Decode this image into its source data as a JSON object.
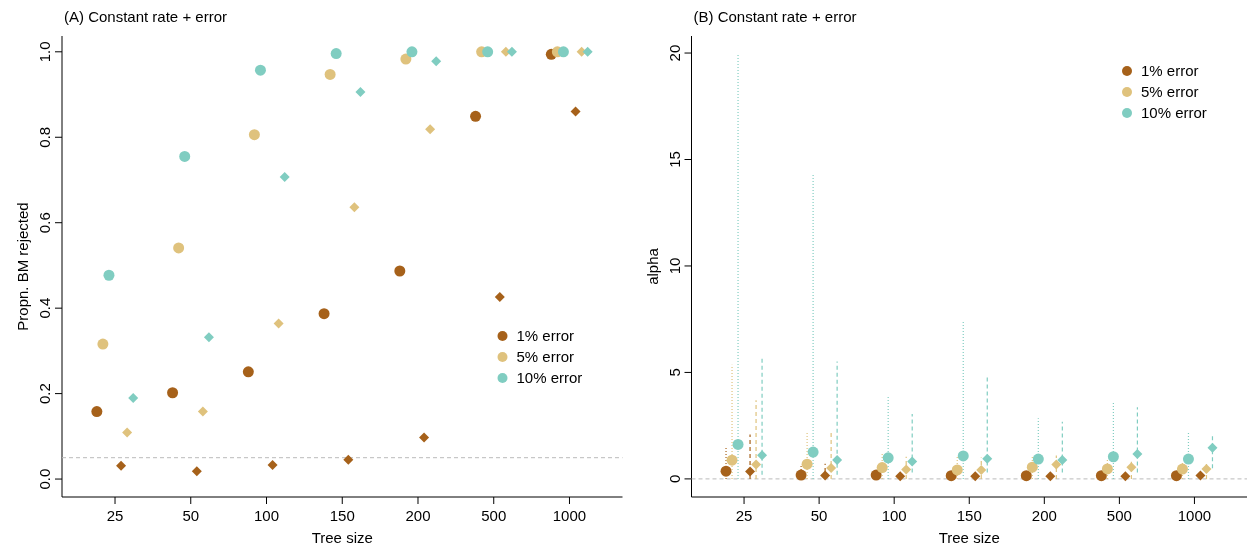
{
  "chart_data": [
    {
      "type": "scatter",
      "title": "(A) Constant rate + error",
      "xlabel": "Tree size",
      "ylabel": "Propn. BM rejected",
      "categories": [
        "25",
        "50",
        "100",
        "150",
        "200",
        "500",
        "1000"
      ],
      "ylim": [
        -0.042,
        1.037
      ],
      "yticks": [
        {
          "value": 0,
          "label": "0.0"
        },
        0.2,
        0.4,
        0.6,
        0.8,
        {
          "value": 1,
          "label": "1.0"
        }
      ],
      "legend": "right",
      "grid": false,
      "ref_lines": [
        {
          "axis": "y",
          "value": 0.05,
          "color": "#bbbbbb",
          "line_style": "dashed"
        }
      ],
      "series": [
        {
          "name": "1% error",
          "color": "#a6611a",
          "marker": "circle",
          "values": [
            0.158,
            0.202,
            0.251,
            0.387,
            0.487,
            0.849,
            0.994
          ]
        },
        {
          "name": "5% error",
          "color": "#dfc27d",
          "marker": "circle",
          "values": [
            0.316,
            0.541,
            0.806,
            0.947,
            0.983,
            1.0,
            1.0
          ]
        },
        {
          "name": "10% error",
          "color": "#80cdc1",
          "marker": "circle",
          "values": [
            0.477,
            0.755,
            0.957,
            0.996,
            1.0,
            1.0,
            1.0
          ]
        },
        {
          "color": "#a6611a",
          "marker": "diamond",
          "values": [
            0.031,
            0.018,
            0.033,
            0.045,
            0.097,
            0.426,
            0.86
          ]
        },
        {
          "color": "#dfc27d",
          "marker": "diamond",
          "values": [
            0.109,
            0.158,
            0.364,
            0.636,
            0.819,
            1.0,
            1.0
          ]
        },
        {
          "color": "#80cdc1",
          "marker": "diamond",
          "values": [
            0.19,
            0.332,
            0.707,
            0.906,
            0.978,
            1.0,
            1.0
          ]
        }
      ]
    },
    {
      "type": "scatter",
      "title": "(B) Constant rate + error",
      "xlabel": "Tree size",
      "ylabel": "alpha",
      "categories": [
        "25",
        "50",
        "100",
        "150",
        "200",
        "500",
        "1000"
      ],
      "ylim": [
        -0.85,
        20.8
      ],
      "yticks": [
        0,
        5,
        10,
        15,
        20
      ],
      "legend": "top right",
      "grid": false,
      "ref_lines": [
        {
          "axis": "y",
          "value": 0,
          "color": "#bbbbbb",
          "line_style": "dashed"
        }
      ],
      "series": [
        {
          "name": "1% error",
          "color": "#a6611a",
          "marker": "circle",
          "line_style": "dotted",
          "values": [
            0.36,
            0.18,
            0.18,
            0.15,
            0.15,
            0.15,
            0.15
          ],
          "errors": [
            [
              0,
              1.46
            ],
            [
              0,
              0.64
            ],
            null,
            null,
            null,
            null,
            null
          ]
        },
        {
          "name": "5% error",
          "color": "#dfc27d",
          "marker": "circle",
          "line_style": "dotted",
          "values": [
            0.88,
            0.69,
            0.53,
            0.42,
            0.55,
            0.47,
            0.46
          ],
          "errors": [
            [
              0,
              5.36
            ],
            [
              0,
              2.23
            ],
            [
              0,
              1.17
            ],
            [
              0,
              1.1
            ],
            [
              0,
              1.05
            ],
            [
              0,
              0.9
            ],
            [
              0,
              0.8
            ]
          ]
        },
        {
          "name": "10% error",
          "color": "#80cdc1",
          "marker": "circle",
          "line_style": "dotted",
          "values": [
            1.62,
            1.26,
            0.99,
            1.08,
            0.93,
            1.04,
            0.93
          ],
          "errors": [
            [
              0,
              20.0
            ],
            [
              0,
              14.3
            ],
            [
              0,
              3.92
            ],
            [
              0,
              7.4
            ],
            [
              0,
              2.85
            ],
            [
              0,
              3.6
            ],
            [
              0,
              2.23
            ]
          ]
        },
        {
          "color": "#a6611a",
          "marker": "diamond",
          "line_style": "dashed",
          "values": [
            0.35,
            0.16,
            0.13,
            0.13,
            0.13,
            0.13,
            0.16
          ],
          "errors": [
            [
              0,
              2.08
            ],
            [
              0,
              0.71
            ],
            null,
            null,
            null,
            null,
            null
          ]
        },
        {
          "color": "#dfc27d",
          "marker": "diamond",
          "line_style": "dashed",
          "values": [
            0.68,
            0.51,
            0.44,
            0.42,
            0.68,
            0.55,
            0.47
          ],
          "errors": [
            [
              0,
              3.69
            ],
            [
              0,
              2.26
            ],
            [
              0,
              1.04
            ],
            [
              0,
              1.0
            ],
            [
              0,
              1.1
            ],
            [
              0,
              0.8
            ],
            [
              0,
              0.7
            ]
          ]
        },
        {
          "color": "#80cdc1",
          "marker": "diamond",
          "line_style": "dashed",
          "values": [
            1.11,
            0.89,
            0.82,
            0.95,
            0.89,
            1.17,
            1.46
          ],
          "errors": [
            [
              0.2,
              5.73
            ],
            [
              0.2,
              5.51
            ],
            [
              0.3,
              3.05
            ],
            [
              0.3,
              4.76
            ],
            [
              0.3,
              2.68
            ],
            [
              0.3,
              3.36
            ],
            [
              0.5,
              2.04
            ]
          ]
        }
      ]
    }
  ]
}
